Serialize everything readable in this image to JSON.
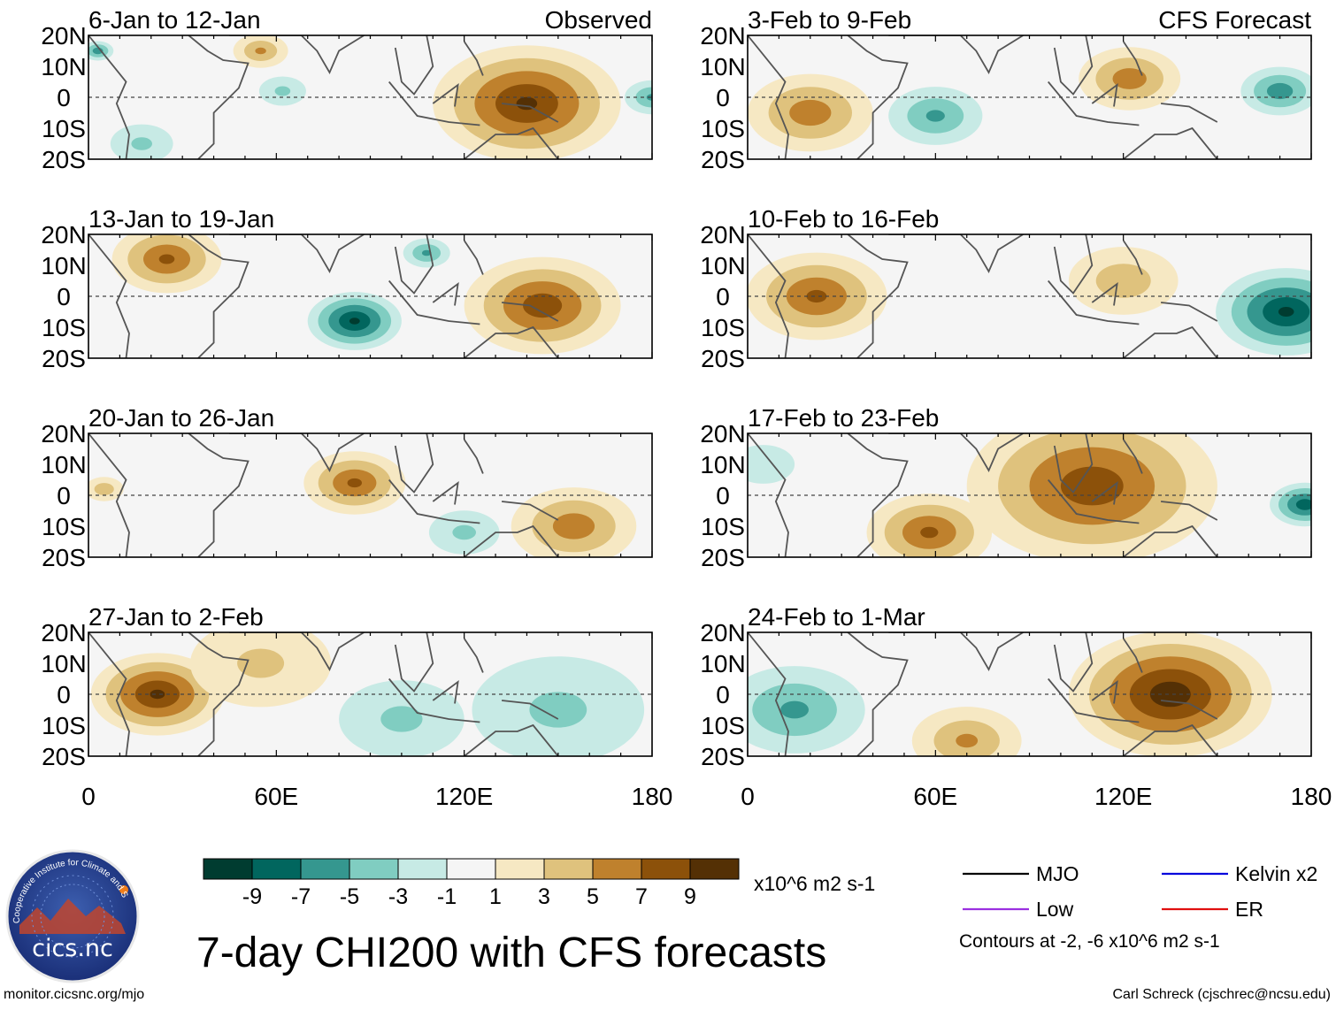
{
  "title": "7-day CHI200 with CFS forecasts",
  "credit_left": "monitor.cicsnc.org/mjo",
  "credit_right": "Carl Schreck (cjschrec@ncsu.edu)",
  "logo": {
    "ring_text": "Cooperative Institute for Climate and Satellites",
    "name": "cics.nc"
  },
  "colorbar": {
    "colors": [
      "#003c30",
      "#01665e",
      "#35978f",
      "#80cdc1",
      "#c7eae5",
      "#f5f5f5",
      "#f6e8c3",
      "#dfc27d",
      "#bf812d",
      "#8c510a",
      "#543005"
    ],
    "labels": [
      "-9",
      "-7",
      "-5",
      "-3",
      "-1",
      "1",
      "3",
      "5",
      "7",
      "9"
    ],
    "units": "x10^6 m2 s-1"
  },
  "legend": {
    "items": [
      {
        "label": "MJO",
        "color": "#000000"
      },
      {
        "label": "Kelvin x2",
        "color": "#0000dd"
      },
      {
        "label": "Low",
        "color": "#9b30e0"
      },
      {
        "label": "ER",
        "color": "#e01010"
      }
    ],
    "note": "Contours at -2, -6 x10^6 m2 s-1"
  },
  "chart_data": [
    {
      "type": "heatmap",
      "title": "6-Jan to 12-Jan",
      "corner_label": "Observed",
      "column": "Observed",
      "xticks": [
        "0",
        "60E",
        "120E",
        "180"
      ],
      "yticks": [
        "20N",
        "10N",
        "0",
        "10S",
        "20S"
      ],
      "xlim": [
        0,
        180
      ],
      "ylim": [
        -20,
        20
      ],
      "anomalies": [
        {
          "lon": 140,
          "lat": -2,
          "value": 9,
          "spread": 24
        },
        {
          "lon": 55,
          "lat": 15,
          "value": 5,
          "spread": 7
        },
        {
          "lon": 17,
          "lat": -15,
          "value": -3,
          "spread": 8
        },
        {
          "lon": 62,
          "lat": 2,
          "value": -3,
          "spread": 6
        },
        {
          "lon": 180,
          "lat": 0,
          "value": -5,
          "spread": 7
        },
        {
          "lon": 3,
          "lat": 15,
          "value": -6,
          "spread": 4
        }
      ]
    },
    {
      "type": "heatmap",
      "title": "13-Jan to 19-Jan",
      "corner_label": "",
      "column": "Observed",
      "xticks": [
        "0",
        "60E",
        "120E",
        "180"
      ],
      "yticks": [
        "20N",
        "10N",
        "0",
        "10S",
        "20S"
      ],
      "xlim": [
        0,
        180
      ],
      "ylim": [
        -20,
        20
      ],
      "anomalies": [
        {
          "lon": 85,
          "lat": -8,
          "value": -9,
          "spread": 12
        },
        {
          "lon": 108,
          "lat": 14,
          "value": -5,
          "spread": 6
        },
        {
          "lon": 145,
          "lat": -3,
          "value": 8,
          "spread": 20
        },
        {
          "lon": 25,
          "lat": 12,
          "value": 7,
          "spread": 14
        }
      ]
    },
    {
      "type": "heatmap",
      "title": "20-Jan to 26-Jan",
      "corner_label": "",
      "column": "Observed",
      "xticks": [
        "0",
        "60E",
        "120E",
        "180"
      ],
      "yticks": [
        "20N",
        "10N",
        "0",
        "10S",
        "20S"
      ],
      "xlim": [
        0,
        180
      ],
      "ylim": [
        -20,
        20
      ],
      "anomalies": [
        {
          "lon": 85,
          "lat": 4,
          "value": 7,
          "spread": 13
        },
        {
          "lon": 155,
          "lat": -10,
          "value": 6,
          "spread": 16
        },
        {
          "lon": 5,
          "lat": 2,
          "value": 4,
          "spread": 5
        },
        {
          "lon": 120,
          "lat": -12,
          "value": -3,
          "spread": 9
        }
      ]
    },
    {
      "type": "heatmap",
      "title": "27-Jan to 2-Feb",
      "corner_label": "",
      "column": "Observed",
      "xticks": [
        "0",
        "60E",
        "120E",
        "180"
      ],
      "yticks": [
        "20N",
        "10N",
        "0",
        "10S",
        "20S"
      ],
      "xlim": [
        0,
        180
      ],
      "ylim": [
        -20,
        20
      ],
      "anomalies": [
        {
          "lon": 22,
          "lat": 0,
          "value": 9,
          "spread": 17
        },
        {
          "lon": 100,
          "lat": -8,
          "value": -3,
          "spread": 16
        },
        {
          "lon": 150,
          "lat": -5,
          "value": -3,
          "spread": 22
        },
        {
          "lon": 55,
          "lat": 10,
          "value": 3,
          "spread": 18
        }
      ]
    },
    {
      "type": "heatmap",
      "title": "3-Feb to 9-Feb",
      "corner_label": "CFS Forecast",
      "column": "CFS Forecast",
      "xticks": [
        "0",
        "60E",
        "120E",
        "180"
      ],
      "yticks": [
        "20N",
        "10N",
        "0",
        "10S",
        "20S"
      ],
      "xlim": [
        0,
        180
      ],
      "ylim": [
        -20,
        20
      ],
      "anomalies": [
        {
          "lon": 20,
          "lat": -5,
          "value": 6,
          "spread": 16
        },
        {
          "lon": 60,
          "lat": -6,
          "value": -5,
          "spread": 12
        },
        {
          "lon": 170,
          "lat": 2,
          "value": -6,
          "spread": 10
        },
        {
          "lon": 122,
          "lat": 6,
          "value": 6,
          "spread": 13
        }
      ]
    },
    {
      "type": "heatmap",
      "title": "10-Feb to 16-Feb",
      "corner_label": "",
      "column": "CFS Forecast",
      "xticks": [
        "0",
        "60E",
        "120E",
        "180"
      ],
      "yticks": [
        "20N",
        "10N",
        "0",
        "10S",
        "20S"
      ],
      "xlim": [
        0,
        180
      ],
      "ylim": [
        -20,
        20
      ],
      "anomalies": [
        {
          "lon": 172,
          "lat": -5,
          "value": -9,
          "spread": 18
        },
        {
          "lon": 22,
          "lat": 0,
          "value": 7,
          "spread": 18
        },
        {
          "lon": 120,
          "lat": 5,
          "value": 4,
          "spread": 14
        }
      ]
    },
    {
      "type": "heatmap",
      "title": "17-Feb to 23-Feb",
      "corner_label": "",
      "column": "CFS Forecast",
      "xticks": [
        "0",
        "60E",
        "120E",
        "180"
      ],
      "yticks": [
        "20N",
        "10N",
        "0",
        "10S",
        "20S"
      ],
      "xlim": [
        0,
        180
      ],
      "ylim": [
        -20,
        20
      ],
      "anomalies": [
        {
          "lon": 110,
          "lat": 3,
          "value": 8,
          "spread": 32
        },
        {
          "lon": 58,
          "lat": -12,
          "value": 7,
          "spread": 16
        },
        {
          "lon": 178,
          "lat": -3,
          "value": -8,
          "spread": 9
        },
        {
          "lon": 5,
          "lat": 10,
          "value": -2,
          "spread": 8
        }
      ]
    },
    {
      "type": "heatmap",
      "title": "24-Feb to 1-Mar",
      "corner_label": "",
      "column": "CFS Forecast",
      "xticks": [
        "0",
        "60E",
        "120E",
        "180"
      ],
      "yticks": [
        "20N",
        "10N",
        "0",
        "10S",
        "20S"
      ],
      "xlim": [
        0,
        180
      ],
      "ylim": [
        -20,
        20
      ],
      "anomalies": [
        {
          "lon": 135,
          "lat": 0,
          "value": 10,
          "spread": 26
        },
        {
          "lon": 15,
          "lat": -5,
          "value": -5,
          "spread": 18
        },
        {
          "lon": 70,
          "lat": -15,
          "value": 5,
          "spread": 14
        }
      ]
    }
  ]
}
